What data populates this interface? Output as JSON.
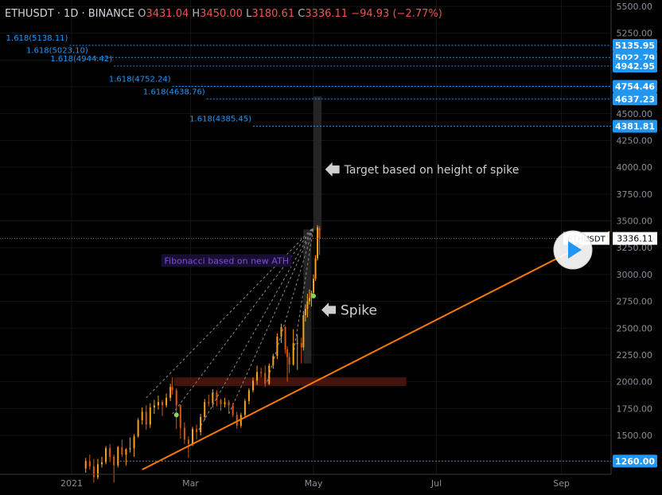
{
  "header": {
    "symbol": "ETHUSDT · 1D · BINANCE",
    "o_label": "O",
    "o": "3431.04",
    "h_label": "H",
    "h": "3450.00",
    "l_label": "L",
    "l": "3180.61",
    "c_label": "C",
    "c": "3336.11",
    "change": "−94.93 (−2.77%)"
  },
  "colors": {
    "background": "#000000",
    "up": "#f7a21b",
    "down": "#d65a0d",
    "fib_line": "#2196f3",
    "trendline": "#f57c00",
    "price_tag": "#2196f3",
    "support_zone": "#5b1a12",
    "box": "#2a2a2a"
  },
  "chart_data": {
    "type": "candlestick",
    "title": "ETHUSDT · 1D · BINANCE",
    "y_ticks": [
      1500,
      1750,
      2000,
      2250,
      2500,
      2750,
      3000,
      3250,
      3500,
      3750,
      4000,
      4250,
      4500,
      4750,
      5000,
      5250,
      5500
    ],
    "y_tick_labels": [
      "1500.00",
      "1750.00",
      "2000.00",
      "2250.00",
      "2500.00",
      "2750.00",
      "3000.00",
      "3250.00",
      "3500.00",
      "3750.00",
      "4000.00",
      "4250.00",
      "4500.00",
      "4750.00",
      "5000.00",
      "5250.00",
      "5500.00"
    ],
    "x_ticks": [
      {
        "date": "2021-01-01",
        "label": "2021"
      },
      {
        "date": "2021-03-01",
        "label": "Mar"
      },
      {
        "date": "2021-05-01",
        "label": "May"
      },
      {
        "date": "2021-07-01",
        "label": "Jul"
      },
      {
        "date": "2021-09-01",
        "label": "Sep"
      }
    ],
    "current_price": 3336.11,
    "current_price_label": "3336.11",
    "symbol_tag": "ETHUSDT",
    "fib_levels": [
      {
        "label": "1.618(5138.11)",
        "price": 5135.95,
        "tag": "5135.95",
        "start_date": "2020-12-31"
      },
      {
        "label": "1.618(5023.10)",
        "price": 5022.79,
        "tag": "5022.79",
        "start_date": "2021-01-10"
      },
      {
        "label": "1.618(4944.42)",
        "price": 4942.95,
        "tag": "4942.95",
        "start_date": "2021-01-22"
      },
      {
        "label": "1.618(4752.24)",
        "price": 4754.46,
        "tag": "4754.46",
        "start_date": "2021-02-20"
      },
      {
        "label": "1.618(4638.76)",
        "price": 4637.23,
        "tag": "4637.23",
        "start_date": "2021-03-09"
      },
      {
        "label": "1.618(4385.45)",
        "price": 4381.81,
        "tag": "4381.81",
        "start_date": "2021-04-01"
      },
      {
        "label": "",
        "price": 1260.0,
        "tag": "1260.00",
        "start_date": "2021-01-25"
      }
    ],
    "support_zone": {
      "start_date": "2021-02-21",
      "end_date": "2021-06-16",
      "top": 2040,
      "bottom": 1960
    },
    "trendline": {
      "from": {
        "date": "2021-02-05",
        "price": 1180
      },
      "to": {
        "date": "2021-09-25",
        "price": 3400
      }
    },
    "boxes": [
      {
        "start_date": "2021-04-26",
        "end_date": "2021-04-30",
        "top": 3420,
        "bottom": 2170
      },
      {
        "start_date": "2021-05-01",
        "end_date": "2021-05-05",
        "top": 4660,
        "bottom": 3410
      }
    ],
    "annotations": [
      {
        "text": "Target based on height of spike",
        "date": "2021-05-06",
        "price": 3980
      },
      {
        "text": "Spike",
        "date": "2021-05-01",
        "price": 2670
      },
      {
        "text": "Fibonacci based on new ATH",
        "date": "2021-02-16",
        "price": 3100
      }
    ],
    "fib_fan_apex": {
      "date": "2021-05-01",
      "price": 3440
    },
    "fib_fan_origins": [
      {
        "date": "2021-02-07",
        "price": 1850
      },
      {
        "date": "2021-02-20",
        "price": 1700
      },
      {
        "date": "2021-03-05",
        "price": 1550
      },
      {
        "date": "2021-03-20",
        "price": 1700
      },
      {
        "date": "2021-04-08",
        "price": 2000
      },
      {
        "date": "2021-04-21",
        "price": 2250
      }
    ],
    "markers": [
      {
        "date": "2021-02-22",
        "price": 1690
      },
      {
        "date": "2021-05-01",
        "price": 2800
      }
    ],
    "candles": [
      {
        "date": "2021-01-08",
        "o": 1190,
        "h": 1290,
        "l": 1150,
        "c": 1260
      },
      {
        "date": "2021-01-10",
        "o": 1260,
        "h": 1320,
        "l": 1180,
        "c": 1210
      },
      {
        "date": "2021-01-12",
        "o": 1210,
        "h": 1280,
        "l": 1060,
        "c": 1110
      },
      {
        "date": "2021-01-14",
        "o": 1110,
        "h": 1280,
        "l": 1090,
        "c": 1230
      },
      {
        "date": "2021-01-16",
        "o": 1230,
        "h": 1300,
        "l": 1200,
        "c": 1250
      },
      {
        "date": "2021-01-18",
        "o": 1250,
        "h": 1400,
        "l": 1230,
        "c": 1380
      },
      {
        "date": "2021-01-20",
        "o": 1380,
        "h": 1420,
        "l": 1250,
        "c": 1300
      },
      {
        "date": "2021-01-22",
        "o": 1300,
        "h": 1320,
        "l": 1060,
        "c": 1220
      },
      {
        "date": "2021-01-24",
        "o": 1220,
        "h": 1400,
        "l": 1200,
        "c": 1390
      },
      {
        "date": "2021-01-26",
        "o": 1390,
        "h": 1460,
        "l": 1300,
        "c": 1320
      },
      {
        "date": "2021-01-28",
        "o": 1320,
        "h": 1380,
        "l": 1220,
        "c": 1370
      },
      {
        "date": "2021-01-30",
        "o": 1370,
        "h": 1480,
        "l": 1340,
        "c": 1380
      },
      {
        "date": "2021-02-01",
        "o": 1380,
        "h": 1510,
        "l": 1300,
        "c": 1490
      },
      {
        "date": "2021-02-03",
        "o": 1490,
        "h": 1660,
        "l": 1480,
        "c": 1640
      },
      {
        "date": "2021-02-05",
        "o": 1640,
        "h": 1760,
        "l": 1600,
        "c": 1720
      },
      {
        "date": "2021-02-07",
        "o": 1720,
        "h": 1780,
        "l": 1550,
        "c": 1600
      },
      {
        "date": "2021-02-09",
        "o": 1600,
        "h": 1800,
        "l": 1570,
        "c": 1760
      },
      {
        "date": "2021-02-11",
        "o": 1760,
        "h": 1830,
        "l": 1700,
        "c": 1780
      },
      {
        "date": "2021-02-13",
        "o": 1780,
        "h": 1870,
        "l": 1740,
        "c": 1810
      },
      {
        "date": "2021-02-15",
        "o": 1810,
        "h": 1830,
        "l": 1680,
        "c": 1780
      },
      {
        "date": "2021-02-17",
        "o": 1780,
        "h": 1890,
        "l": 1760,
        "c": 1850
      },
      {
        "date": "2021-02-19",
        "o": 1850,
        "h": 1980,
        "l": 1820,
        "c": 1950
      },
      {
        "date": "2021-02-20",
        "o": 1950,
        "h": 2040,
        "l": 1880,
        "c": 1920
      },
      {
        "date": "2021-02-22",
        "o": 1920,
        "h": 1940,
        "l": 1560,
        "c": 1780
      },
      {
        "date": "2021-02-24",
        "o": 1780,
        "h": 1790,
        "l": 1470,
        "c": 1570
      },
      {
        "date": "2021-02-26",
        "o": 1570,
        "h": 1620,
        "l": 1420,
        "c": 1460
      },
      {
        "date": "2021-02-28",
        "o": 1460,
        "h": 1490,
        "l": 1290,
        "c": 1420
      },
      {
        "date": "2021-03-02",
        "o": 1420,
        "h": 1580,
        "l": 1400,
        "c": 1560
      },
      {
        "date": "2021-03-04",
        "o": 1560,
        "h": 1600,
        "l": 1460,
        "c": 1530
      },
      {
        "date": "2021-03-06",
        "o": 1530,
        "h": 1700,
        "l": 1500,
        "c": 1670
      },
      {
        "date": "2021-03-08",
        "o": 1670,
        "h": 1840,
        "l": 1640,
        "c": 1810
      },
      {
        "date": "2021-03-10",
        "o": 1810,
        "h": 1880,
        "l": 1770,
        "c": 1800
      },
      {
        "date": "2021-03-12",
        "o": 1800,
        "h": 1930,
        "l": 1760,
        "c": 1900
      },
      {
        "date": "2021-03-14",
        "o": 1900,
        "h": 1920,
        "l": 1770,
        "c": 1830
      },
      {
        "date": "2021-03-16",
        "o": 1830,
        "h": 1840,
        "l": 1730,
        "c": 1790
      },
      {
        "date": "2021-03-18",
        "o": 1790,
        "h": 1850,
        "l": 1760,
        "c": 1810
      },
      {
        "date": "2021-03-20",
        "o": 1810,
        "h": 1830,
        "l": 1700,
        "c": 1780
      },
      {
        "date": "2021-03-22",
        "o": 1780,
        "h": 1800,
        "l": 1670,
        "c": 1690
      },
      {
        "date": "2021-03-24",
        "o": 1690,
        "h": 1720,
        "l": 1560,
        "c": 1590
      },
      {
        "date": "2021-03-26",
        "o": 1590,
        "h": 1710,
        "l": 1570,
        "c": 1690
      },
      {
        "date": "2021-03-28",
        "o": 1690,
        "h": 1840,
        "l": 1670,
        "c": 1820
      },
      {
        "date": "2021-03-30",
        "o": 1820,
        "h": 1940,
        "l": 1790,
        "c": 1920
      },
      {
        "date": "2021-04-01",
        "o": 1920,
        "h": 2040,
        "l": 1900,
        "c": 2010
      },
      {
        "date": "2021-04-03",
        "o": 2010,
        "h": 2150,
        "l": 1970,
        "c": 2090
      },
      {
        "date": "2021-04-05",
        "o": 2090,
        "h": 2130,
        "l": 2040,
        "c": 2080
      },
      {
        "date": "2021-04-07",
        "o": 2080,
        "h": 2150,
        "l": 1950,
        "c": 1980
      },
      {
        "date": "2021-04-09",
        "o": 1980,
        "h": 2170,
        "l": 1970,
        "c": 2150
      },
      {
        "date": "2021-04-11",
        "o": 2150,
        "h": 2260,
        "l": 2120,
        "c": 2240
      },
      {
        "date": "2021-04-13",
        "o": 2240,
        "h": 2450,
        "l": 2210,
        "c": 2420
      },
      {
        "date": "2021-04-15",
        "o": 2420,
        "h": 2540,
        "l": 2360,
        "c": 2510
      },
      {
        "date": "2021-04-17",
        "o": 2510,
        "h": 2520,
        "l": 2260,
        "c": 2300
      },
      {
        "date": "2021-04-18",
        "o": 2300,
        "h": 2330,
        "l": 2000,
        "c": 2230
      },
      {
        "date": "2021-04-19",
        "o": 2230,
        "h": 2270,
        "l": 2080,
        "c": 2160
      },
      {
        "date": "2021-04-21",
        "o": 2160,
        "h": 2490,
        "l": 2150,
        "c": 2360
      },
      {
        "date": "2021-04-23",
        "o": 2360,
        "h": 2440,
        "l": 2110,
        "c": 2360
      },
      {
        "date": "2021-04-25",
        "o": 2360,
        "h": 2410,
        "l": 2170,
        "c": 2320
      },
      {
        "date": "2021-04-26",
        "o": 2320,
        "h": 2660,
        "l": 2290,
        "c": 2620
      },
      {
        "date": "2021-04-27",
        "o": 2620,
        "h": 2720,
        "l": 2560,
        "c": 2680
      },
      {
        "date": "2021-04-28",
        "o": 2680,
        "h": 2820,
        "l": 2600,
        "c": 2750
      },
      {
        "date": "2021-04-29",
        "o": 2750,
        "h": 2860,
        "l": 2720,
        "c": 2780
      },
      {
        "date": "2021-04-30",
        "o": 2780,
        "h": 2850,
        "l": 2700,
        "c": 2830
      },
      {
        "date": "2021-05-01",
        "o": 2830,
        "h": 3000,
        "l": 2800,
        "c": 2960
      },
      {
        "date": "2021-05-02",
        "o": 2960,
        "h": 3180,
        "l": 2940,
        "c": 3150
      },
      {
        "date": "2021-05-03",
        "o": 3150,
        "h": 3460,
        "l": 3130,
        "c": 3440
      },
      {
        "date": "2021-05-04",
        "o": 3431.04,
        "h": 3450.0,
        "l": 3180.61,
        "c": 3336.11
      }
    ]
  }
}
